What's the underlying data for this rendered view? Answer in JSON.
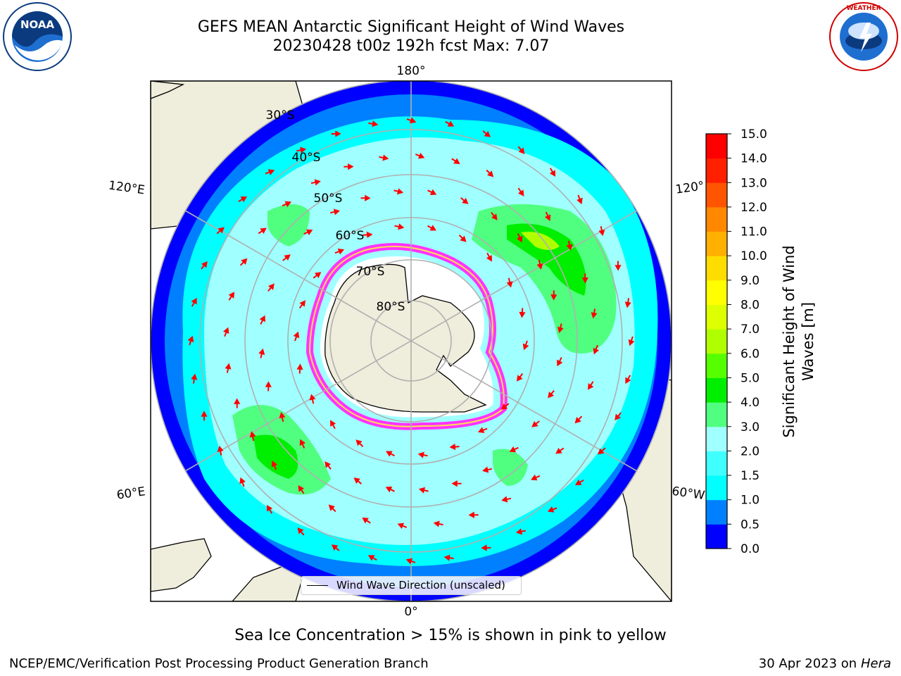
{
  "title": {
    "line1": "GEFS MEAN Antarctic Significant Height of Wind Waves",
    "line2": "20230428 t00z 192h fcst   Max: 7.07"
  },
  "logos": {
    "left": "NOAA",
    "right": "NATIONAL WEATHER SERVICE"
  },
  "map": {
    "projection": "south-polar-stereographic",
    "lon_labels": {
      "top": "180°",
      "bottom": "0°",
      "upper_left": "120°E",
      "upper_right": "120°",
      "lower_left": "60°E",
      "lower_right": "60°W"
    },
    "lat_labels": [
      "30°S",
      "40°S",
      "50°S",
      "60°S",
      "70°S",
      "80°S"
    ],
    "legend_label": "Wind Wave Direction (unscaled)",
    "arrow_color": "#ff0000",
    "land_color": "#efeddb",
    "ice_colors": [
      "#ff33ff",
      "#ffdd55"
    ]
  },
  "colorbar": {
    "label_line1": "Significant Height of Wind",
    "label_line2": "Waves [m]",
    "ticks": [
      "0.0",
      "0.5",
      "1.0",
      "1.5",
      "2.0",
      "3.0",
      "4.0",
      "5.0",
      "6.0",
      "7.0",
      "8.0",
      "9.0",
      "10.0",
      "11.0",
      "12.0",
      "13.0",
      "14.0",
      "15.0"
    ],
    "colors": [
      "#0000ff",
      "#0080ff",
      "#00ffff",
      "#40ffff",
      "#a0ffff",
      "#50ff80",
      "#00ee00",
      "#55ff00",
      "#b0ff00",
      "#ddff00",
      "#ffff00",
      "#ffdd00",
      "#ffb000",
      "#ff8800",
      "#ff5500",
      "#ff2000",
      "#ff0000"
    ]
  },
  "caption": "Sea Ice Concentration > 15% is shown in pink to yellow",
  "footer": {
    "left": "NCEP/EMC/Verification Post Processing Product Generation Branch",
    "right_prefix": "30 Apr 2023 on ",
    "right_italic": "Hera"
  }
}
